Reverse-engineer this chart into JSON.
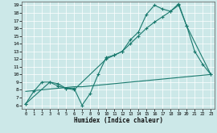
{
  "xlabel": "Humidex (Indice chaleur)",
  "bg_color": "#cce8e8",
  "line_color": "#1a7a6e",
  "grid_color": "#b0d8d8",
  "xlim": [
    -0.5,
    23.5
  ],
  "ylim": [
    5.5,
    19.5
  ],
  "xticks": [
    0,
    1,
    2,
    3,
    4,
    5,
    6,
    7,
    8,
    9,
    10,
    11,
    12,
    13,
    14,
    15,
    16,
    17,
    18,
    19,
    20,
    21,
    22,
    23
  ],
  "yticks": [
    6,
    7,
    8,
    9,
    10,
    11,
    12,
    13,
    14,
    15,
    16,
    17,
    18,
    19
  ],
  "line1_x": [
    0,
    1,
    2,
    3,
    4,
    5,
    6,
    7,
    8,
    9,
    10,
    11,
    12,
    13,
    14,
    15,
    16,
    17,
    18,
    19,
    20,
    21,
    22,
    23
  ],
  "line1_y": [
    6.2,
    7.8,
    9.0,
    9.0,
    8.5,
    8.2,
    8.2,
    6.0,
    7.5,
    10.0,
    12.2,
    12.5,
    13.0,
    14.5,
    15.5,
    17.8,
    19.0,
    18.5,
    18.2,
    19.0,
    16.3,
    13.0,
    11.3,
    10.0
  ],
  "line2_x": [
    0,
    3,
    4,
    5,
    6,
    10,
    11,
    12,
    13,
    14,
    15,
    16,
    17,
    18,
    19,
    20,
    23
  ],
  "line2_y": [
    6.2,
    9.0,
    8.8,
    8.2,
    8.0,
    12.0,
    12.5,
    13.0,
    14.0,
    15.0,
    16.0,
    16.8,
    17.5,
    18.2,
    19.2,
    16.3,
    10.0
  ],
  "line3_x": [
    0,
    1,
    2,
    3,
    4,
    5,
    6,
    7,
    8,
    9,
    10,
    11,
    12,
    13,
    14,
    15,
    16,
    17,
    18,
    19,
    20,
    21,
    22,
    23
  ],
  "line3_y": [
    7.8,
    7.9,
    8.0,
    8.1,
    8.2,
    8.3,
    8.4,
    8.4,
    8.5,
    8.6,
    8.7,
    8.8,
    8.9,
    9.0,
    9.1,
    9.2,
    9.3,
    9.4,
    9.5,
    9.6,
    9.7,
    9.8,
    9.9,
    10.0
  ]
}
